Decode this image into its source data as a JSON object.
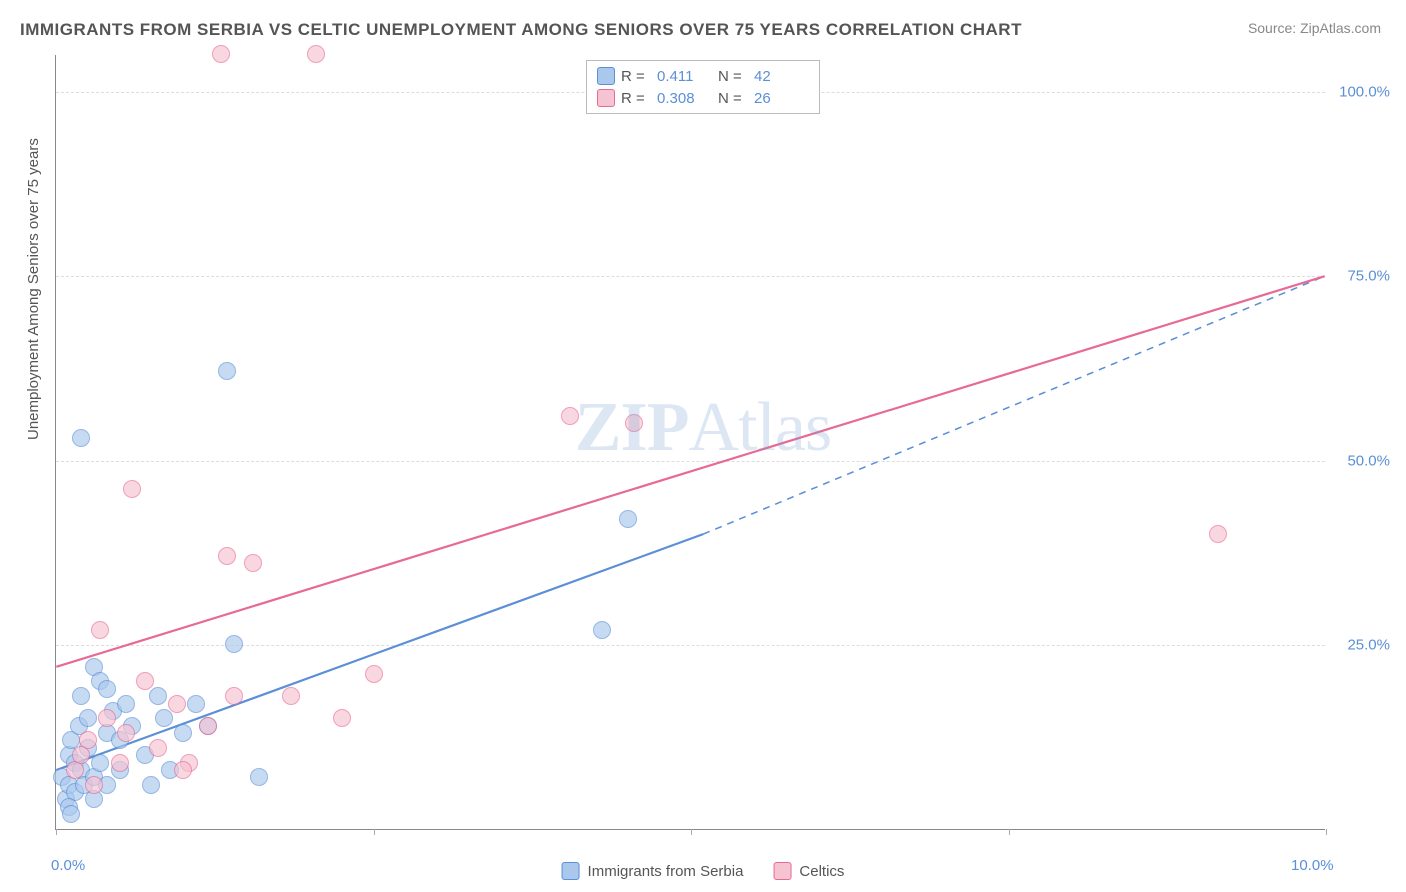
{
  "title": "IMMIGRANTS FROM SERBIA VS CELTIC UNEMPLOYMENT AMONG SENIORS OVER 75 YEARS CORRELATION CHART",
  "source": "Source: ZipAtlas.com",
  "ylabel": "Unemployment Among Seniors over 75 years",
  "watermark": {
    "bold": "ZIP",
    "light": "Atlas"
  },
  "chart": {
    "type": "scatter",
    "xlim": [
      0,
      10
    ],
    "ylim": [
      0,
      105
    ],
    "x_ticks": [
      0,
      2.5,
      5,
      7.5,
      10
    ],
    "x_tick_labels": [
      "0.0%",
      "",
      "",
      "",
      "10.0%"
    ],
    "y_gridlines": [
      25,
      50,
      75,
      100
    ],
    "y_tick_labels": [
      "25.0%",
      "50.0%",
      "75.0%",
      "100.0%"
    ],
    "background_color": "#ffffff",
    "grid_color": "#dddddd",
    "axis_color": "#888888",
    "tick_label_color": "#5b8fd6",
    "marker_radius": 9,
    "marker_opacity": 0.65,
    "series": [
      {
        "name": "Immigrants from Serbia",
        "color_fill": "#a9c8ec",
        "color_stroke": "#5b8fd6",
        "r": 0.411,
        "n": 42,
        "trend": {
          "x1": 0,
          "y1": 8,
          "x2": 5.1,
          "y2": 40,
          "dash_to_x": 10,
          "dash_to_y": 75,
          "stroke_width": 2.2
        },
        "points": [
          [
            0.05,
            7
          ],
          [
            0.08,
            4
          ],
          [
            0.1,
            10
          ],
          [
            0.1,
            6
          ],
          [
            0.12,
            12
          ],
          [
            0.15,
            9
          ],
          [
            0.15,
            5
          ],
          [
            0.18,
            14
          ],
          [
            0.2,
            8
          ],
          [
            0.2,
            18
          ],
          [
            0.22,
            6
          ],
          [
            0.25,
            11
          ],
          [
            0.25,
            15
          ],
          [
            0.3,
            7
          ],
          [
            0.3,
            22
          ],
          [
            0.35,
            9
          ],
          [
            0.35,
            20
          ],
          [
            0.4,
            13
          ],
          [
            0.4,
            6
          ],
          [
            0.45,
            16
          ],
          [
            0.5,
            12
          ],
          [
            0.5,
            8
          ],
          [
            0.55,
            17
          ],
          [
            0.6,
            14
          ],
          [
            0.7,
            10
          ],
          [
            0.75,
            6
          ],
          [
            0.8,
            18
          ],
          [
            0.85,
            15
          ],
          [
            0.9,
            8
          ],
          [
            1.0,
            13
          ],
          [
            1.1,
            17
          ],
          [
            1.2,
            14
          ],
          [
            1.4,
            25
          ],
          [
            1.6,
            7
          ],
          [
            1.35,
            62
          ],
          [
            0.2,
            53
          ],
          [
            4.5,
            42
          ],
          [
            4.3,
            27
          ],
          [
            0.1,
            3
          ],
          [
            0.3,
            4
          ],
          [
            0.4,
            19
          ],
          [
            0.12,
            2
          ]
        ]
      },
      {
        "name": "Celtics",
        "color_fill": "#f6c3d2",
        "color_stroke": "#e76a94",
        "r": 0.308,
        "n": 26,
        "trend": {
          "x1": 0,
          "y1": 22,
          "x2": 10,
          "y2": 75,
          "stroke_width": 2.2
        },
        "points": [
          [
            0.15,
            8
          ],
          [
            0.25,
            12
          ],
          [
            0.3,
            6
          ],
          [
            0.4,
            15
          ],
          [
            0.5,
            9
          ],
          [
            0.55,
            13
          ],
          [
            0.7,
            20
          ],
          [
            0.8,
            11
          ],
          [
            0.95,
            17
          ],
          [
            1.05,
            9
          ],
          [
            1.2,
            14
          ],
          [
            1.4,
            18
          ],
          [
            0.6,
            46
          ],
          [
            0.35,
            27
          ],
          [
            1.35,
            37
          ],
          [
            1.55,
            36
          ],
          [
            1.85,
            18
          ],
          [
            2.5,
            21
          ],
          [
            2.25,
            15
          ],
          [
            4.05,
            56
          ],
          [
            4.55,
            55
          ],
          [
            1.3,
            105
          ],
          [
            2.05,
            105
          ],
          [
            9.15,
            40
          ],
          [
            0.2,
            10
          ],
          [
            1.0,
            8
          ]
        ]
      }
    ],
    "legend_top": [
      {
        "swatch_fill": "#a9c8ec",
        "swatch_stroke": "#5b8fd6",
        "r_label": "R =",
        "r_value": "0.411",
        "n_label": "N =",
        "n_value": "42"
      },
      {
        "swatch_fill": "#f6c3d2",
        "swatch_stroke": "#e76a94",
        "r_label": "R =",
        "r_value": "0.308",
        "n_label": "N =",
        "n_value": "26"
      }
    ],
    "legend_bottom": [
      {
        "swatch_fill": "#a9c8ec",
        "swatch_stroke": "#5b8fd6",
        "label": "Immigrants from Serbia"
      },
      {
        "swatch_fill": "#f6c3d2",
        "swatch_stroke": "#e76a94",
        "label": "Celtics"
      }
    ]
  }
}
